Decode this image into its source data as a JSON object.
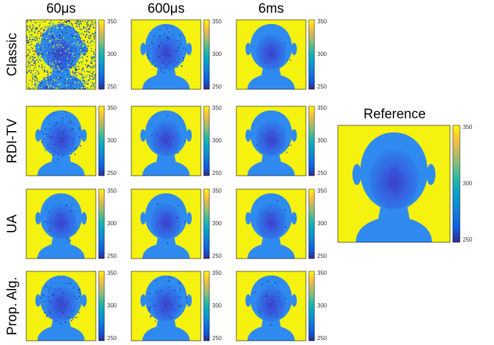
{
  "columns": [
    "60μs",
    "600μs",
    "6ms"
  ],
  "rows": [
    "Classic",
    "RDI-TV",
    "UA",
    "Prop. Alg."
  ],
  "colorbar_ticks": [
    350,
    300,
    250
  ],
  "reference": {
    "title": "Reference"
  }
}
